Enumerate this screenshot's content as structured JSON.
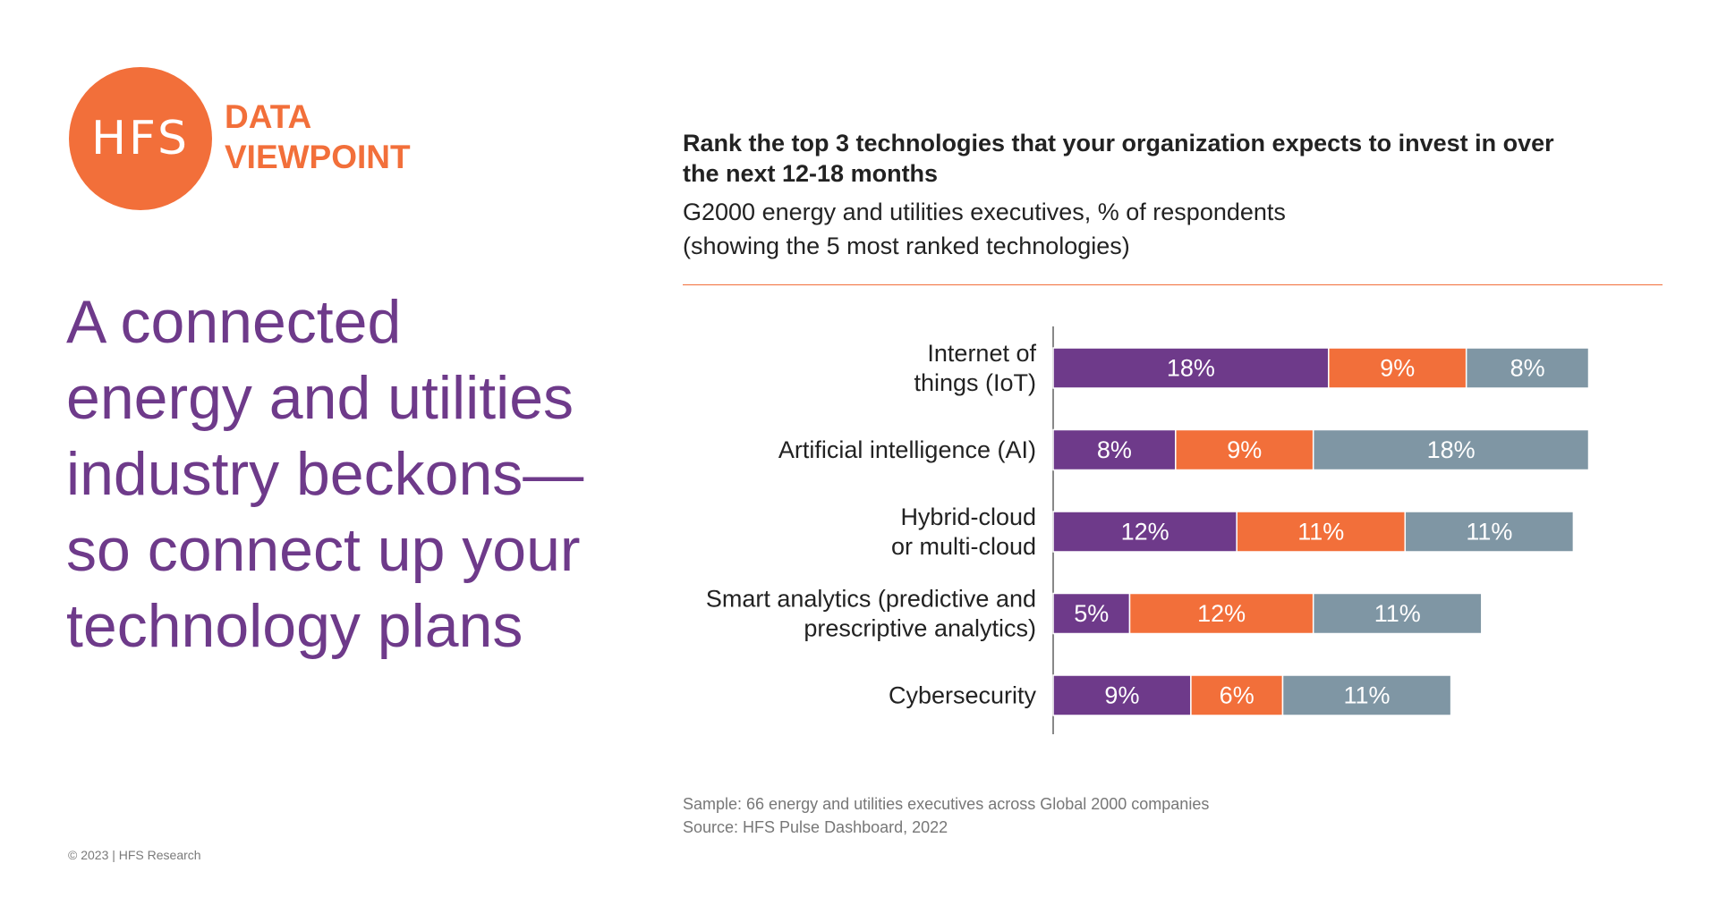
{
  "brand": {
    "logo_text": "HFS",
    "tagline_line1": "DATA",
    "tagline_line2": "VIEWPOINT",
    "color": "#f26f3a"
  },
  "headline": "A connected energy and utilities industry beckons—so connect up your technology plans",
  "copyright": "© 2023 | HFS Research",
  "chart_header": {
    "title": "Rank the top 3 technologies that your organization expects to invest in over the next 12-18 months",
    "subtitle_line1": "G2000 energy and utilities executives, % of respondents",
    "subtitle_line2": "(showing the 5 most ranked technologies)"
  },
  "footnote": {
    "sample": "Sample: 66 energy and utilities executives across Global 2000 companies",
    "source": "Source: HFS Pulse Dashboard, 2022"
  },
  "chart_data": {
    "type": "bar",
    "orientation": "horizontal",
    "stacked": true,
    "categories": [
      [
        "Internet of",
        "things (IoT)"
      ],
      [
        "Artificial intelligence (AI)"
      ],
      [
        "Hybrid-cloud",
        "or multi-cloud"
      ],
      [
        "Smart analytics (predictive and",
        "prescriptive analytics)"
      ],
      [
        "Cybersecurity"
      ]
    ],
    "series": [
      {
        "color": "#6e3a8a",
        "values": [
          18,
          8,
          12,
          5,
          9
        ]
      },
      {
        "color": "#f26f3a",
        "values": [
          9,
          9,
          11,
          12,
          6
        ]
      },
      {
        "color": "#7f96a4",
        "values": [
          8,
          18,
          11,
          11,
          11
        ]
      }
    ],
    "value_suffix": "%",
    "xlim": [
      0,
      45
    ]
  }
}
